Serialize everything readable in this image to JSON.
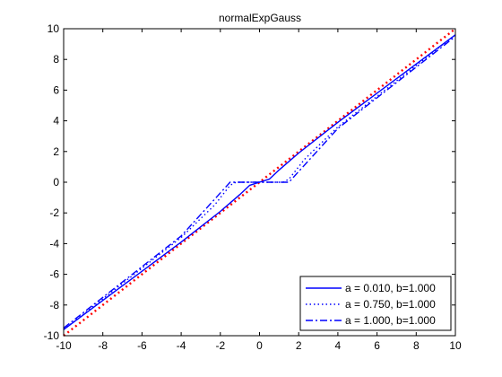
{
  "chart_data": {
    "type": "line",
    "title": "normalExpGauss",
    "xlabel": "",
    "ylabel": "",
    "xlim": [
      -10,
      10
    ],
    "ylim": [
      -10,
      10
    ],
    "xticks": [
      -10,
      -8,
      -6,
      -4,
      -2,
      0,
      2,
      4,
      6,
      8,
      10
    ],
    "yticks": [
      -10,
      -8,
      -6,
      -4,
      -2,
      0,
      2,
      4,
      6,
      8,
      10
    ],
    "grid": false,
    "legend_position": "bottom-right",
    "reference_line": {
      "color": "#ff0000",
      "style": "dotted",
      "x": [
        -10,
        10
      ],
      "y": [
        -10,
        10
      ]
    },
    "series": [
      {
        "name": "a = 0.010, b=1.000",
        "color": "#0000ff",
        "style": "solid",
        "x": [
          -10,
          -8,
          -6,
          -4,
          -2,
          -1,
          -0.5,
          0,
          0.5,
          1,
          2,
          4,
          6,
          8,
          10
        ],
        "y": [
          -9.6,
          -7.7,
          -5.8,
          -3.9,
          -1.9,
          -0.8,
          -0.2,
          0,
          0.2,
          0.8,
          1.9,
          3.9,
          5.8,
          7.7,
          9.6
        ]
      },
      {
        "name": "a = 0.750, b=1.000",
        "color": "#0000ff",
        "style": "dotted",
        "x": [
          -10,
          -8,
          -6,
          -4,
          -2.3,
          -1.5,
          -1.2,
          0,
          1.2,
          1.5,
          2.3,
          4,
          6,
          8,
          10
        ],
        "y": [
          -9.6,
          -7.6,
          -5.6,
          -3.6,
          -1.5,
          -0.2,
          0,
          0,
          0,
          0.2,
          1.5,
          3.6,
          5.6,
          7.6,
          9.6
        ]
      },
      {
        "name": "a = 1.000, b=1.000",
        "color": "#0000ff",
        "style": "dashdot",
        "x": [
          -10,
          -8,
          -6,
          -4,
          -2.5,
          -1.5,
          -1.3,
          0,
          1.3,
          1.5,
          2.5,
          4,
          6,
          8,
          10
        ],
        "y": [
          -9.5,
          -7.5,
          -5.5,
          -3.5,
          -1.4,
          0,
          0,
          0,
          0,
          0,
          1.4,
          3.5,
          5.5,
          7.5,
          9.5
        ]
      }
    ]
  }
}
